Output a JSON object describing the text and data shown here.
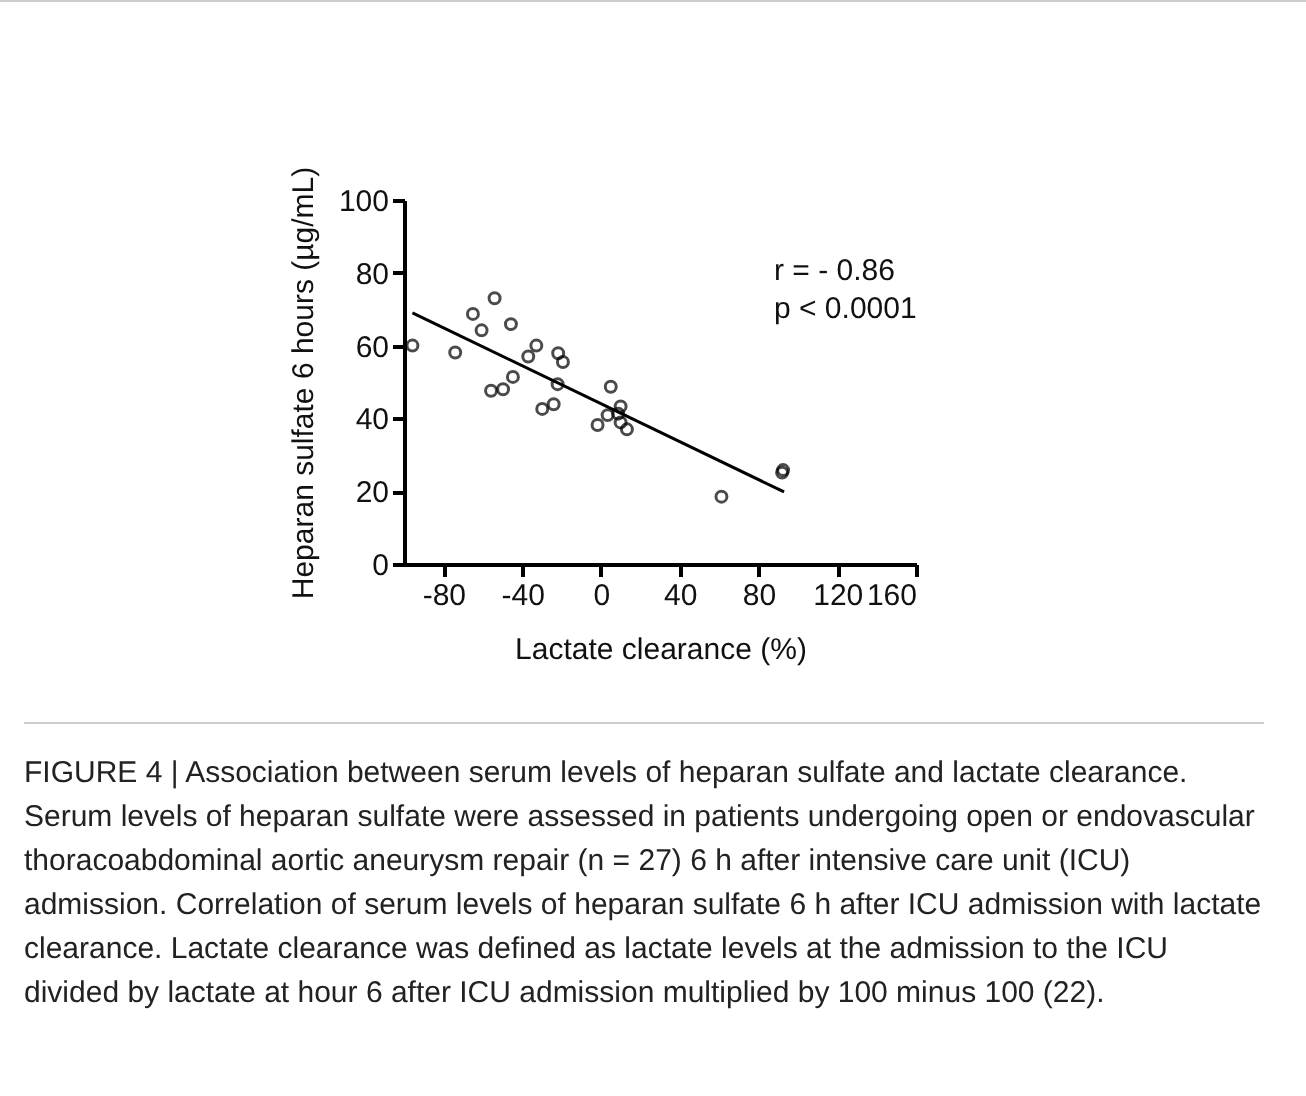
{
  "chart_data": {
    "type": "scatter",
    "xlabel": "Lactate clearance (%)",
    "ylabel": "Heparan sulfate 6 hours (µg/mL)",
    "xlim": [
      -100,
      160
    ],
    "xticks": [
      -80,
      -40,
      0,
      40,
      80,
      120,
      160
    ],
    "ylim": [
      0,
      100
    ],
    "yticks": [
      0,
      20,
      40,
      60,
      80,
      100
    ],
    "marker": "circle",
    "series": [
      {
        "color": "#000000",
        "x": [
          -95.7,
          -54,
          -65,
          -45.7,
          -60.6,
          -74,
          -32.8,
          -36.9,
          -21.7,
          -19.3,
          -44.7,
          -55.8,
          -49.7,
          -22,
          -29.8,
          -24,
          5,
          10,
          3.4,
          8.8,
          -1.7,
          10,
          13.2,
          61.2,
          92,
          92.5
        ],
        "values": [
          60,
          73,
          68.7,
          65.9,
          64.2,
          58.1,
          60,
          57,
          57.9,
          55.5,
          51.4,
          47.6,
          48,
          49.4,
          42.6,
          43.9,
          48.7,
          43.3,
          40.9,
          41.3,
          38.2,
          38.9,
          37,
          18.5,
          25.1,
          25.8
        ]
      },
      {
        "type": "line",
        "color": "#000000",
        "marker": "none",
        "x": [
          -95.7,
          93
        ],
        "values": [
          69,
          19.8
        ]
      }
    ],
    "annotations": [
      "r = - 0.86",
      "p < 0.0001",
      "FIGURE 4 | Association between serum levels of heparan sulfate and lactate clearance. Serum levels of heparan sulfate were assessed in patients undergoing open or endovascular thoracoabdominal aortic aneurysm repair (n = 27) 6 h after intensive care unit (ICU) admission. Correlation of serum levels of heparan sulfate 6 h after ICU admission with lactate clearance. Lactate clearance was defined as lactate levels at the admission to the ICU divided by lactate at hour 6 after ICU admission multiplied by 100 minus 100 (22)."
    ]
  }
}
